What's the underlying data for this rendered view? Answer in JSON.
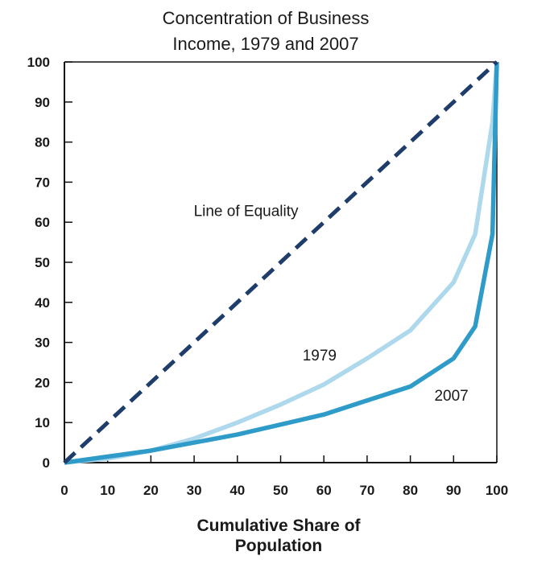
{
  "chart_data": {
    "type": "line",
    "title_line1": "Concentration of Business",
    "title_line2": "Income,  1979 and 2007",
    "xlabel_line1": "Cumulative Share of",
    "xlabel_line2": "Population",
    "ylabel": "",
    "xlim": [
      0,
      100
    ],
    "ylim": [
      0,
      100
    ],
    "xticks": [
      0,
      10,
      20,
      30,
      40,
      50,
      60,
      70,
      80,
      90,
      100
    ],
    "yticks": [
      0,
      10,
      20,
      30,
      40,
      50,
      60,
      70,
      80,
      90,
      100
    ],
    "grid": false,
    "series": [
      {
        "label": "Line of Equality",
        "style": "dashed",
        "color": "#1f3d6b",
        "x": [
          0,
          100
        ],
        "y": [
          0,
          100
        ]
      },
      {
        "label": "1979",
        "style": "solid",
        "color": "#aed8ec",
        "x": [
          0,
          10,
          20,
          30,
          40,
          50,
          60,
          70,
          80,
          90,
          95,
          99,
          100
        ],
        "y": [
          0,
          1,
          3,
          6,
          10,
          14.5,
          19.5,
          26,
          33,
          45,
          57,
          85,
          100
        ]
      },
      {
        "label": "2007",
        "style": "solid",
        "color": "#2e9bc9",
        "x": [
          0,
          10,
          20,
          30,
          40,
          50,
          60,
          70,
          80,
          90,
          95,
          99,
          100
        ],
        "y": [
          0,
          1.5,
          3,
          5,
          7,
          9.5,
          12,
          15.5,
          19,
          26,
          34,
          57,
          100
        ]
      }
    ],
    "annotations": [
      {
        "text": "Line of Equality",
        "x": 42,
        "y": 61.5
      },
      {
        "text": "1979",
        "x": 59,
        "y": 25.5
      },
      {
        "text": "2007",
        "x": 89.5,
        "y": 15.5
      }
    ]
  }
}
